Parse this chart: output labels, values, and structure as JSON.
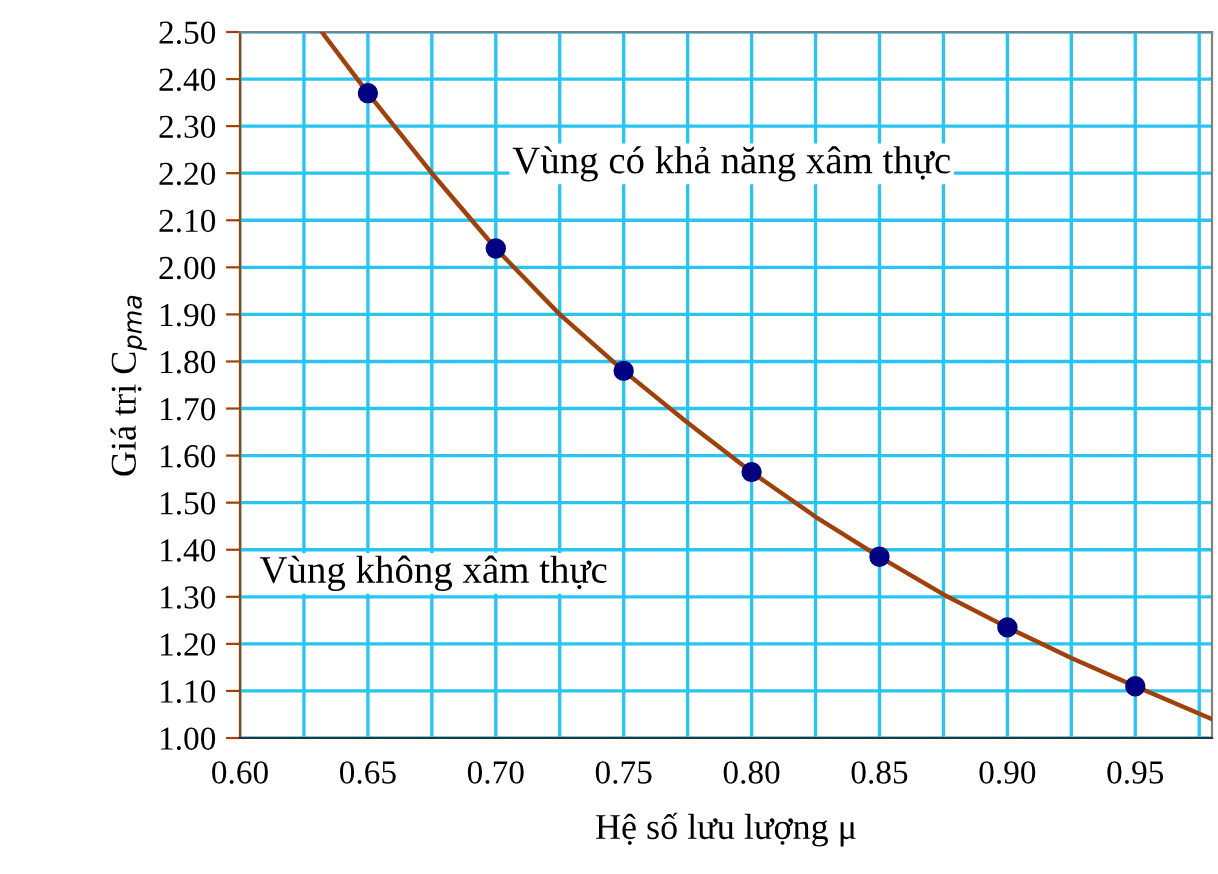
{
  "chart_data": {
    "type": "line",
    "xlabel": "Hệ số lưu lượng μ",
    "ylabel": "Giá trị C$_{pma}$",
    "xlim": [
      0.6,
      0.98
    ],
    "ylim": [
      1.0,
      2.5
    ],
    "xticks": [
      {
        "value": 0.6,
        "label": "0.60"
      },
      {
        "value": 0.625,
        "label": null
      },
      {
        "value": 0.65,
        "label": "0.65"
      },
      {
        "value": 0.675,
        "label": null
      },
      {
        "value": 0.7,
        "label": "0.70"
      },
      {
        "value": 0.725,
        "label": null
      },
      {
        "value": 0.75,
        "label": "0.75"
      },
      {
        "value": 0.775,
        "label": null
      },
      {
        "value": 0.8,
        "label": "0.80"
      },
      {
        "value": 0.825,
        "label": null
      },
      {
        "value": 0.85,
        "label": "0.85"
      },
      {
        "value": 0.875,
        "label": null
      },
      {
        "value": 0.9,
        "label": "0.90"
      },
      {
        "value": 0.925,
        "label": null
      },
      {
        "value": 0.95,
        "label": "0.95"
      },
      {
        "value": 0.975,
        "label": null
      }
    ],
    "yticks": [
      {
        "value": 1.0,
        "label": "1.00"
      },
      {
        "value": 1.1,
        "label": "1.10"
      },
      {
        "value": 1.2,
        "label": "1.20"
      },
      {
        "value": 1.3,
        "label": "1.30"
      },
      {
        "value": 1.4,
        "label": "1.40"
      },
      {
        "value": 1.5,
        "label": "1.50"
      },
      {
        "value": 1.6,
        "label": "1.60"
      },
      {
        "value": 1.7,
        "label": "1.70"
      },
      {
        "value": 1.8,
        "label": "1.80"
      },
      {
        "value": 1.9,
        "label": "1.90"
      },
      {
        "value": 2.0,
        "label": "2.00"
      },
      {
        "value": 2.1,
        "label": "2.10"
      },
      {
        "value": 2.2,
        "label": "2.20"
      },
      {
        "value": 2.3,
        "label": "2.30"
      },
      {
        "value": 2.4,
        "label": "2.40"
      },
      {
        "value": 2.5,
        "label": "2.50"
      }
    ],
    "grid": true,
    "legend": false,
    "series": [
      {
        "color": "#a0400a",
        "marker": "none",
        "x": [
          0.632,
          0.65,
          0.675,
          0.7,
          0.725,
          0.75,
          0.775,
          0.8,
          0.825,
          0.85,
          0.875,
          0.9,
          0.925,
          0.95,
          0.98
        ],
        "values": [
          2.5,
          2.37,
          2.2,
          2.04,
          1.9,
          1.78,
          1.67,
          1.565,
          1.47,
          1.385,
          1.305,
          1.235,
          1.17,
          1.11,
          1.04
        ]
      },
      {
        "type": "scatter",
        "color": "#000080",
        "marker": "circle",
        "x": [
          0.65,
          0.7,
          0.75,
          0.8,
          0.85,
          0.9,
          0.95
        ],
        "values": [
          2.37,
          2.04,
          1.78,
          1.565,
          1.385,
          1.235,
          1.11
        ]
      }
    ],
    "annotations": [
      "Vùng có khả năng xâm thực",
      "Vùng không xâm thực"
    ]
  }
}
